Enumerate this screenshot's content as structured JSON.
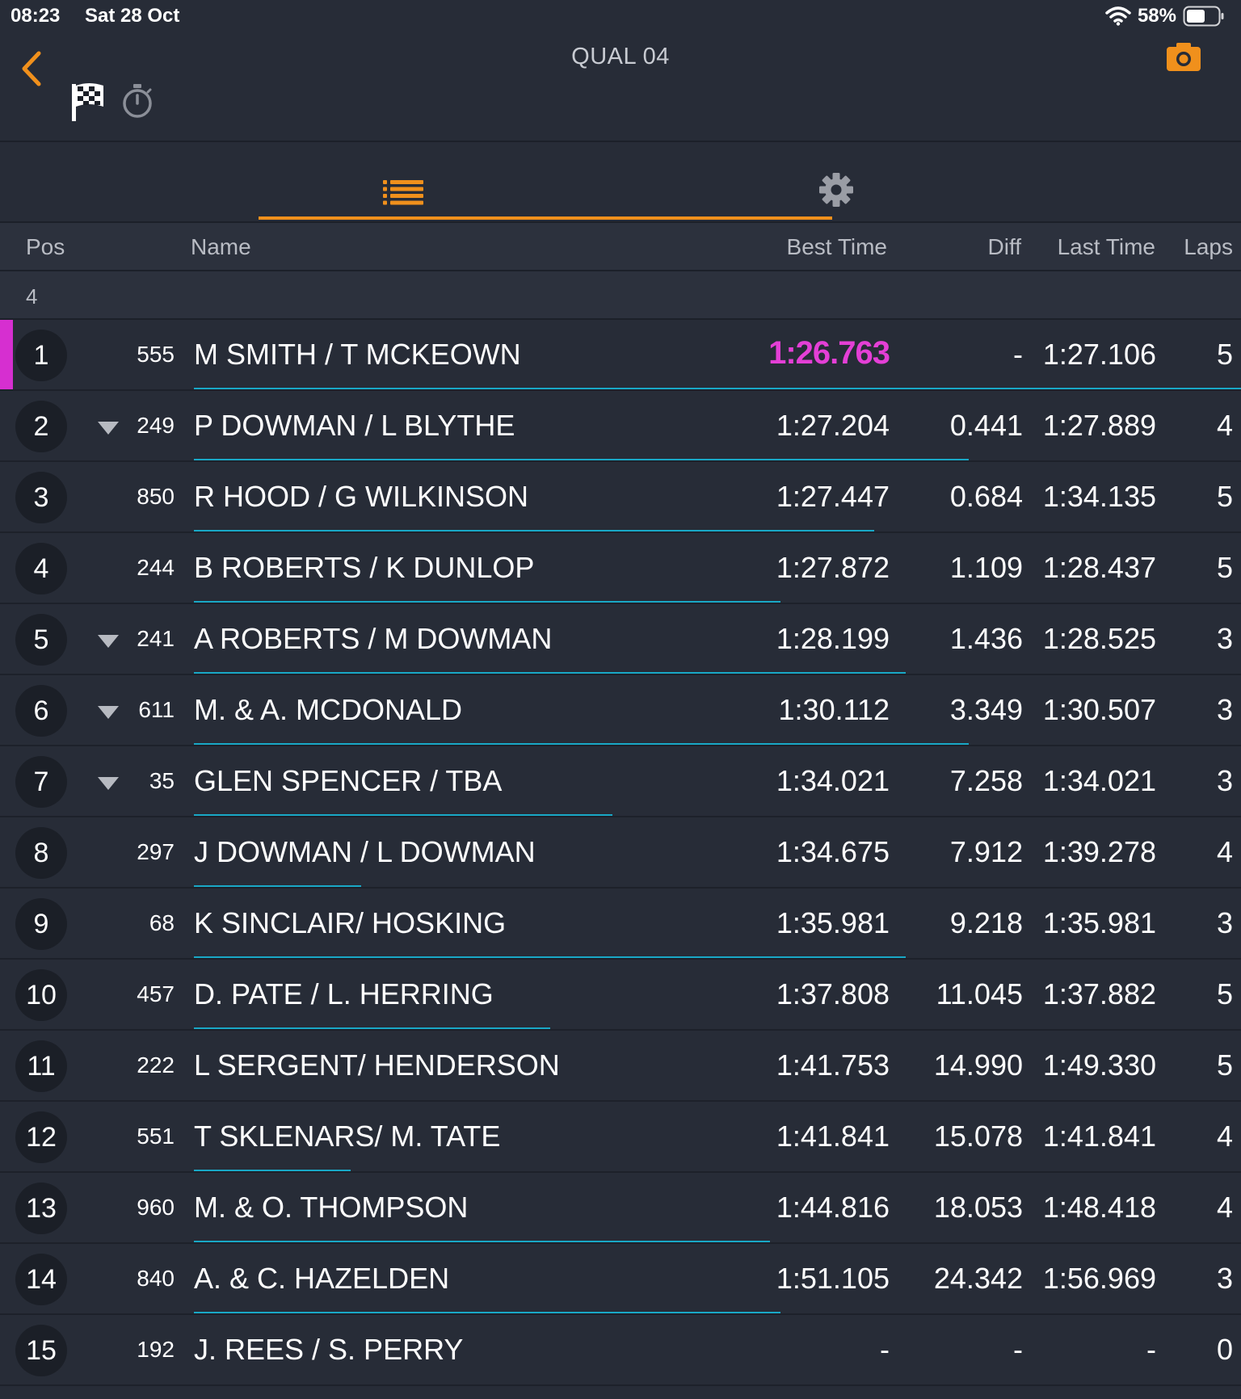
{
  "status_bar": {
    "time": "08:23",
    "date": "Sat 28 Oct",
    "battery": "58%"
  },
  "header": {
    "title": "QUAL 04"
  },
  "columns": {
    "pos": "Pos",
    "name": "Name",
    "best_time": "Best Time",
    "diff": "Diff",
    "last_time": "Last Time",
    "laps": "Laps"
  },
  "group": {
    "label": "4"
  },
  "colors": {
    "accent": "#f0901c",
    "fastest": "#e43fd6",
    "progress": "#19a8c6",
    "background": "#272c37"
  },
  "icons": {
    "back": "back-chevron-icon",
    "camera": "camera-icon",
    "flag": "checkered-flag-icon",
    "stopwatch": "stopwatch-icon",
    "list": "list-icon",
    "settings": "gear-icon",
    "dropped": "triangle-down-icon"
  },
  "rows": [
    {
      "pos": "1",
      "car": "555",
      "name": "M SMITH / T MCKEOWN",
      "best": "1:26.763",
      "diff": "-",
      "last": "1:27.106",
      "laps": "5",
      "leader": true,
      "dropped": false,
      "progress": 1.0
    },
    {
      "pos": "2",
      "car": "249",
      "name": "P DOWMAN / L BLYTHE",
      "best": "1:27.204",
      "diff": "0.441",
      "last": "1:27.889",
      "laps": "4",
      "leader": false,
      "dropped": true,
      "progress": 0.74
    },
    {
      "pos": "3",
      "car": "850",
      "name": "R HOOD / G WILKINSON",
      "best": "1:27.447",
      "diff": "0.684",
      "last": "1:34.135",
      "laps": "5",
      "leader": false,
      "dropped": false,
      "progress": 0.65
    },
    {
      "pos": "4",
      "car": "244",
      "name": "B ROBERTS / K DUNLOP",
      "best": "1:27.872",
      "diff": "1.109",
      "last": "1:28.437",
      "laps": "5",
      "leader": false,
      "dropped": false,
      "progress": 0.56
    },
    {
      "pos": "5",
      "car": "241",
      "name": "A ROBERTS / M DOWMAN",
      "best": "1:28.199",
      "diff": "1.436",
      "last": "1:28.525",
      "laps": "3",
      "leader": false,
      "dropped": true,
      "progress": 0.68
    },
    {
      "pos": "6",
      "car": "611",
      "name": "M. & A. MCDONALD",
      "best": "1:30.112",
      "diff": "3.349",
      "last": "1:30.507",
      "laps": "3",
      "leader": false,
      "dropped": true,
      "progress": 0.74
    },
    {
      "pos": "7",
      "car": "35",
      "name": "GLEN SPENCER / TBA",
      "best": "1:34.021",
      "diff": "7.258",
      "last": "1:34.021",
      "laps": "3",
      "leader": false,
      "dropped": true,
      "progress": 0.4
    },
    {
      "pos": "8",
      "car": "297",
      "name": "J DOWMAN / L DOWMAN",
      "best": "1:34.675",
      "diff": "7.912",
      "last": "1:39.278",
      "laps": "4",
      "leader": false,
      "dropped": false,
      "progress": 0.16
    },
    {
      "pos": "9",
      "car": "68",
      "name": "K SINCLAIR/ HOSKING",
      "best": "1:35.981",
      "diff": "9.218",
      "last": "1:35.981",
      "laps": "3",
      "leader": false,
      "dropped": false,
      "progress": 0.68
    },
    {
      "pos": "10",
      "car": "457",
      "name": "D. PATE / L. HERRING",
      "best": "1:37.808",
      "diff": "11.045",
      "last": "1:37.882",
      "laps": "5",
      "leader": false,
      "dropped": false,
      "progress": 0.34
    },
    {
      "pos": "11",
      "car": "222",
      "name": "L SERGENT/ HENDERSON",
      "best": "1:41.753",
      "diff": "14.990",
      "last": "1:49.330",
      "laps": "5",
      "leader": false,
      "dropped": false,
      "progress": 0.0
    },
    {
      "pos": "12",
      "car": "551",
      "name": "T SKLENARS/ M. TATE",
      "best": "1:41.841",
      "diff": "15.078",
      "last": "1:41.841",
      "laps": "4",
      "leader": false,
      "dropped": false,
      "progress": 0.15
    },
    {
      "pos": "13",
      "car": "960",
      "name": "M. & O. THOMPSON",
      "best": "1:44.816",
      "diff": "18.053",
      "last": "1:48.418",
      "laps": "4",
      "leader": false,
      "dropped": false,
      "progress": 0.55
    },
    {
      "pos": "14",
      "car": "840",
      "name": "A. & C. HAZELDEN",
      "best": "1:51.105",
      "diff": "24.342",
      "last": "1:56.969",
      "laps": "3",
      "leader": false,
      "dropped": false,
      "progress": 0.56
    },
    {
      "pos": "15",
      "car": "192",
      "name": "J. REES / S. PERRY",
      "best": "-",
      "diff": "-",
      "last": "-",
      "laps": "0",
      "leader": false,
      "dropped": false,
      "progress": 0.0
    }
  ]
}
